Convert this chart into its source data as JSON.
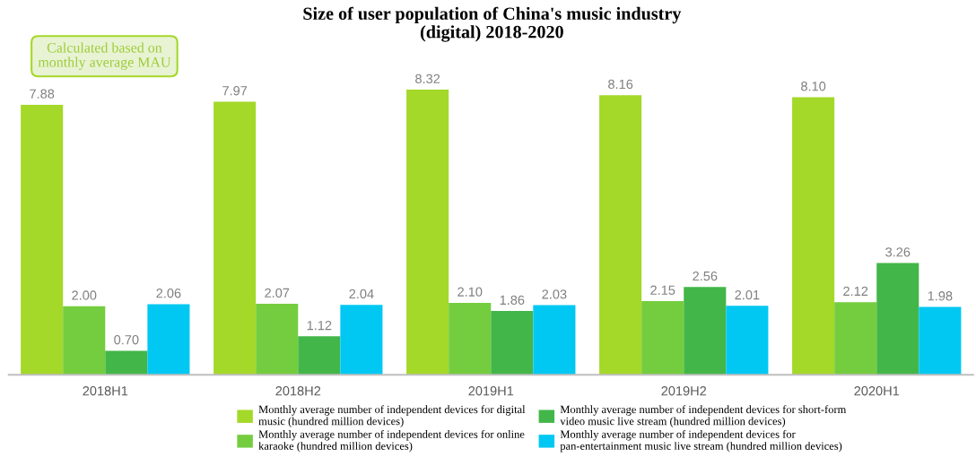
{
  "chart_data": {
    "type": "bar",
    "title": "Size of user population of China's music industry (digital) 2018-2020",
    "annotations": [
      "Calculated based on monthly average MAU"
    ],
    "categories": [
      "2018H1",
      "2018H2",
      "2019H1",
      "2019H2",
      "2020H1"
    ],
    "series": [
      {
        "name": "Monthly average number of independent devices for digital music (hundred million devices)",
        "color": "#a4d829",
        "values": [
          7.88,
          7.97,
          8.32,
          8.16,
          8.1
        ],
        "value_labels": [
          "7.88",
          "7.97",
          "8.32",
          "8.16",
          "8.10"
        ]
      },
      {
        "name": "Monthly average number of independent devices for online karaoke (hundred million devices)",
        "color": "#74cd3e",
        "values": [
          2.0,
          2.07,
          2.1,
          2.15,
          2.12
        ],
        "value_labels": [
          "2.00",
          "2.07",
          "2.10",
          "2.15",
          "2.12"
        ]
      },
      {
        "name": "Monthly average number of independent devices for short-form video music live stream (hundred million devices)",
        "color": "#43b649",
        "values": [
          0.7,
          1.12,
          1.86,
          2.56,
          3.26
        ],
        "value_labels": [
          "0.70",
          "1.12",
          "1.86",
          "2.56",
          "3.26"
        ]
      },
      {
        "name": "Monthly average number of independent devices for pan-entertainment music live stream (hundred million devices)",
        "color": "#00c8f2",
        "values": [
          2.06,
          2.04,
          2.03,
          2.01,
          1.98
        ],
        "value_labels": [
          "2.06",
          "2.04",
          "2.03",
          "2.01",
          "1.98"
        ]
      }
    ],
    "tick_labels": "x",
    "legend": "bottom"
  }
}
